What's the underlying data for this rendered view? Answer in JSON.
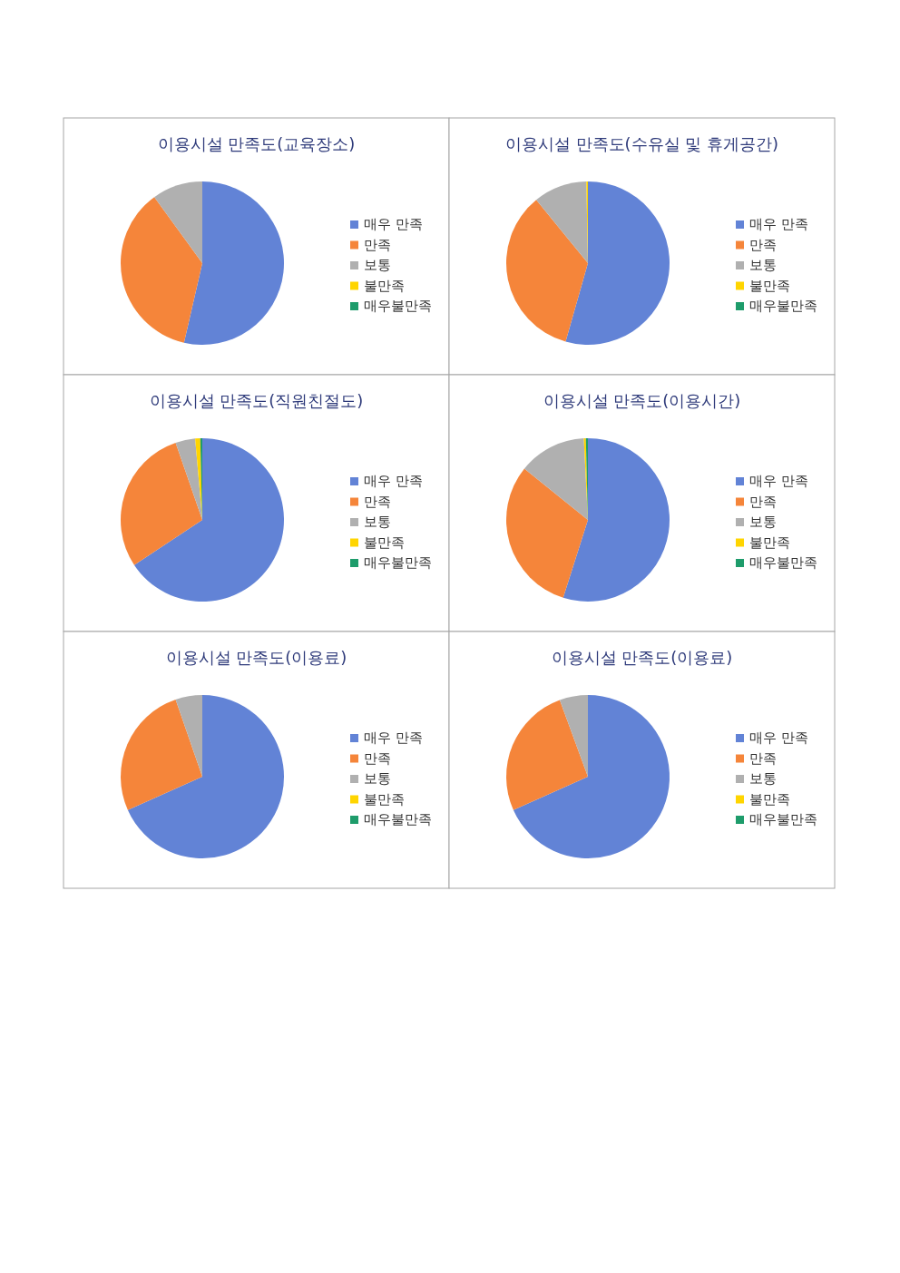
{
  "chart_data": [
    {
      "type": "pie",
      "title": "이용시설 만족도(교육장소)",
      "categories": [
        "매우 만족",
        "만족",
        "보통",
        "불만족",
        "매우불만족"
      ],
      "values": [
        53.6,
        36.4,
        10,
        0,
        0
      ],
      "colors": [
        "#6283d6",
        "#f5853a",
        "#b0b0b0",
        "#ffd500",
        "#1e9c6b"
      ],
      "legend": "right"
    },
    {
      "type": "pie",
      "title": "이용시설 만족도(수유실 및 휴게공간)",
      "categories": [
        "매우 만족",
        "만족",
        "보통",
        "불만족",
        "매우불만족"
      ],
      "values": [
        54.4,
        34.7,
        10.6,
        0.3,
        0
      ],
      "colors": [
        "#6283d6",
        "#f5853a",
        "#b0b0b0",
        "#ffd500",
        "#1e9c6b"
      ],
      "legend": "right"
    },
    {
      "type": "pie",
      "title": "이용시설 만족도(직원친절도)",
      "categories": [
        "매우 만족",
        "만족",
        "보통",
        "불만족",
        "매우불만족"
      ],
      "values": [
        65.7,
        29,
        3.9,
        1,
        0.4
      ],
      "colors": [
        "#6283d6",
        "#f5853a",
        "#b0b0b0",
        "#ffd500",
        "#1e9c6b"
      ],
      "legend": "right"
    },
    {
      "type": "pie",
      "title": "이용시설 만족도(이용시간)",
      "categories": [
        "매우 만족",
        "만족",
        "보통",
        "불만족",
        "매우불만족"
      ],
      "values": [
        54.9,
        30.9,
        13.4,
        0.4,
        0.4
      ],
      "colors": [
        "#6283d6",
        "#f5853a",
        "#b0b0b0",
        "#ffd500",
        "#1e9c6b"
      ],
      "legend": "right"
    },
    {
      "type": "pie",
      "title": "이용시설 만족도(이용료)",
      "categories": [
        "매우 만족",
        "만족",
        "보통",
        "불만족",
        "매우불만족"
      ],
      "values": [
        68.3,
        26.4,
        5.3,
        0,
        0
      ],
      "colors": [
        "#6283d6",
        "#f5853a",
        "#b0b0b0",
        "#ffd500",
        "#1e9c6b"
      ],
      "legend": "right"
    },
    {
      "type": "pie",
      "title": "이용시설 만족도(이용료)",
      "categories": [
        "매우 만족",
        "만족",
        "보통",
        "불만족",
        "매우불만족"
      ],
      "values": [
        68.3,
        26.1,
        5.6,
        0,
        0
      ],
      "colors": [
        "#6283d6",
        "#f5853a",
        "#b0b0b0",
        "#ffd500",
        "#1e9c6b"
      ],
      "legend": "right"
    }
  ]
}
